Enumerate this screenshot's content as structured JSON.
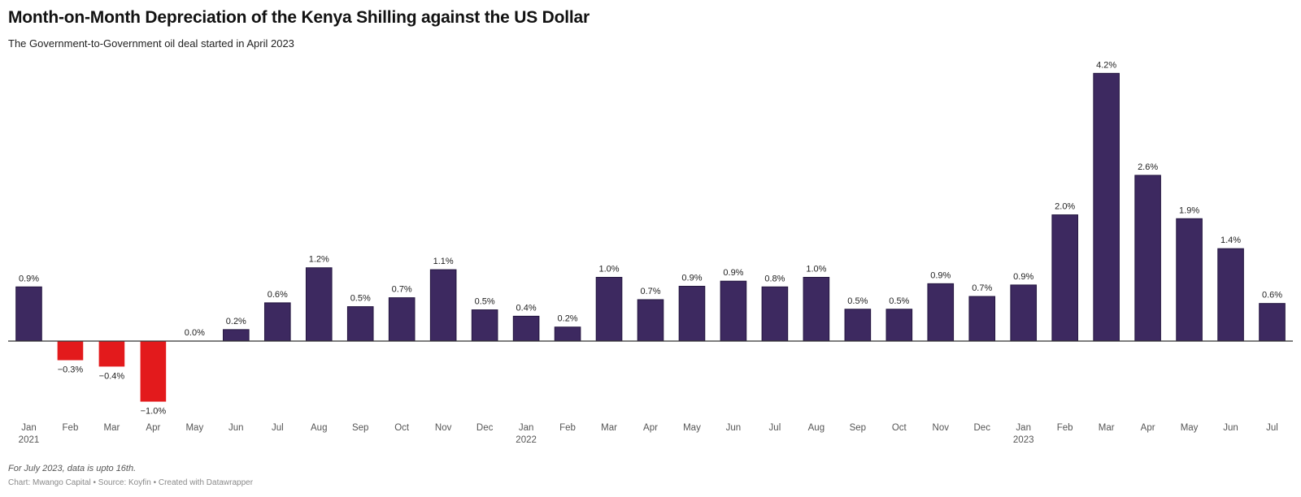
{
  "chart_data": {
    "type": "bar",
    "title": "Month-on-Month Depreciation of the Kenya Shilling against the US Dollar",
    "subtitle": "The Government-to-Government oil deal started in April 2023",
    "categories": [
      "Jan 2021",
      "Feb 2021",
      "Mar 2021",
      "Apr 2021",
      "May 2021",
      "Jun 2021",
      "Jul 2021",
      "Aug 2021",
      "Sep 2021",
      "Oct 2021",
      "Nov 2021",
      "Dec 2021",
      "Jan 2022",
      "Feb 2022",
      "Mar 2022",
      "Apr 2022",
      "May 2022",
      "Jun 2022",
      "Jul 2022",
      "Aug 2022",
      "Sep 2022",
      "Oct 2022",
      "Nov 2022",
      "Dec 2022",
      "Jan 2023",
      "Feb 2023",
      "Mar 2023",
      "Apr 2023",
      "May 2023",
      "Jun 2023",
      "Jul 2023"
    ],
    "tick_labels": [
      "Jan",
      "Feb",
      "Mar",
      "Apr",
      "May",
      "Jun",
      "Jul",
      "Aug",
      "Sep",
      "Oct",
      "Nov",
      "Dec",
      "Jan",
      "Feb",
      "Mar",
      "Apr",
      "May",
      "Jun",
      "Jul",
      "Aug",
      "Sep",
      "Oct",
      "Nov",
      "Dec",
      "Jan",
      "Feb",
      "Mar",
      "Apr",
      "May",
      "Jun",
      "Jul"
    ],
    "year_labels": [
      {
        "index": 0,
        "label": "2021"
      },
      {
        "index": 12,
        "label": "2022"
      },
      {
        "index": 24,
        "label": "2023"
      }
    ],
    "values": [
      0.85,
      -0.3,
      -0.4,
      -0.95,
      0.0,
      0.18,
      0.6,
      1.15,
      0.54,
      0.68,
      1.12,
      0.49,
      0.39,
      0.22,
      1.0,
      0.65,
      0.86,
      0.94,
      0.85,
      1.0,
      0.5,
      0.5,
      0.9,
      0.7,
      0.88,
      1.98,
      4.2,
      2.6,
      1.92,
      1.45,
      0.59
    ],
    "data_labels": [
      "0.9%",
      "−0.3%",
      "−0.4%",
      "−1.0%",
      "0.0%",
      "0.2%",
      "0.6%",
      "1.2%",
      "0.5%",
      "0.7%",
      "1.1%",
      "0.5%",
      "0.4%",
      "0.2%",
      "1.0%",
      "0.7%",
      "0.9%",
      "0.9%",
      "0.8%",
      "1.0%",
      "0.5%",
      "0.5%",
      "0.9%",
      "0.7%",
      "0.9%",
      "2.0%",
      "4.2%",
      "2.6%",
      "1.9%",
      "1.4%",
      "0.6%"
    ],
    "unit": "%",
    "ylim": [
      -1.3,
      4.4
    ],
    "grid": false,
    "colors": {
      "positive": "#3d2960",
      "negative": "#e31a1c",
      "axis": "#333333",
      "tick_label": "#555555",
      "data_label": "#222222"
    }
  },
  "notes": "For July 2023, data is upto 16th.",
  "source": "Chart: Mwango Capital • Source: Koyfin • Created with Datawrapper"
}
